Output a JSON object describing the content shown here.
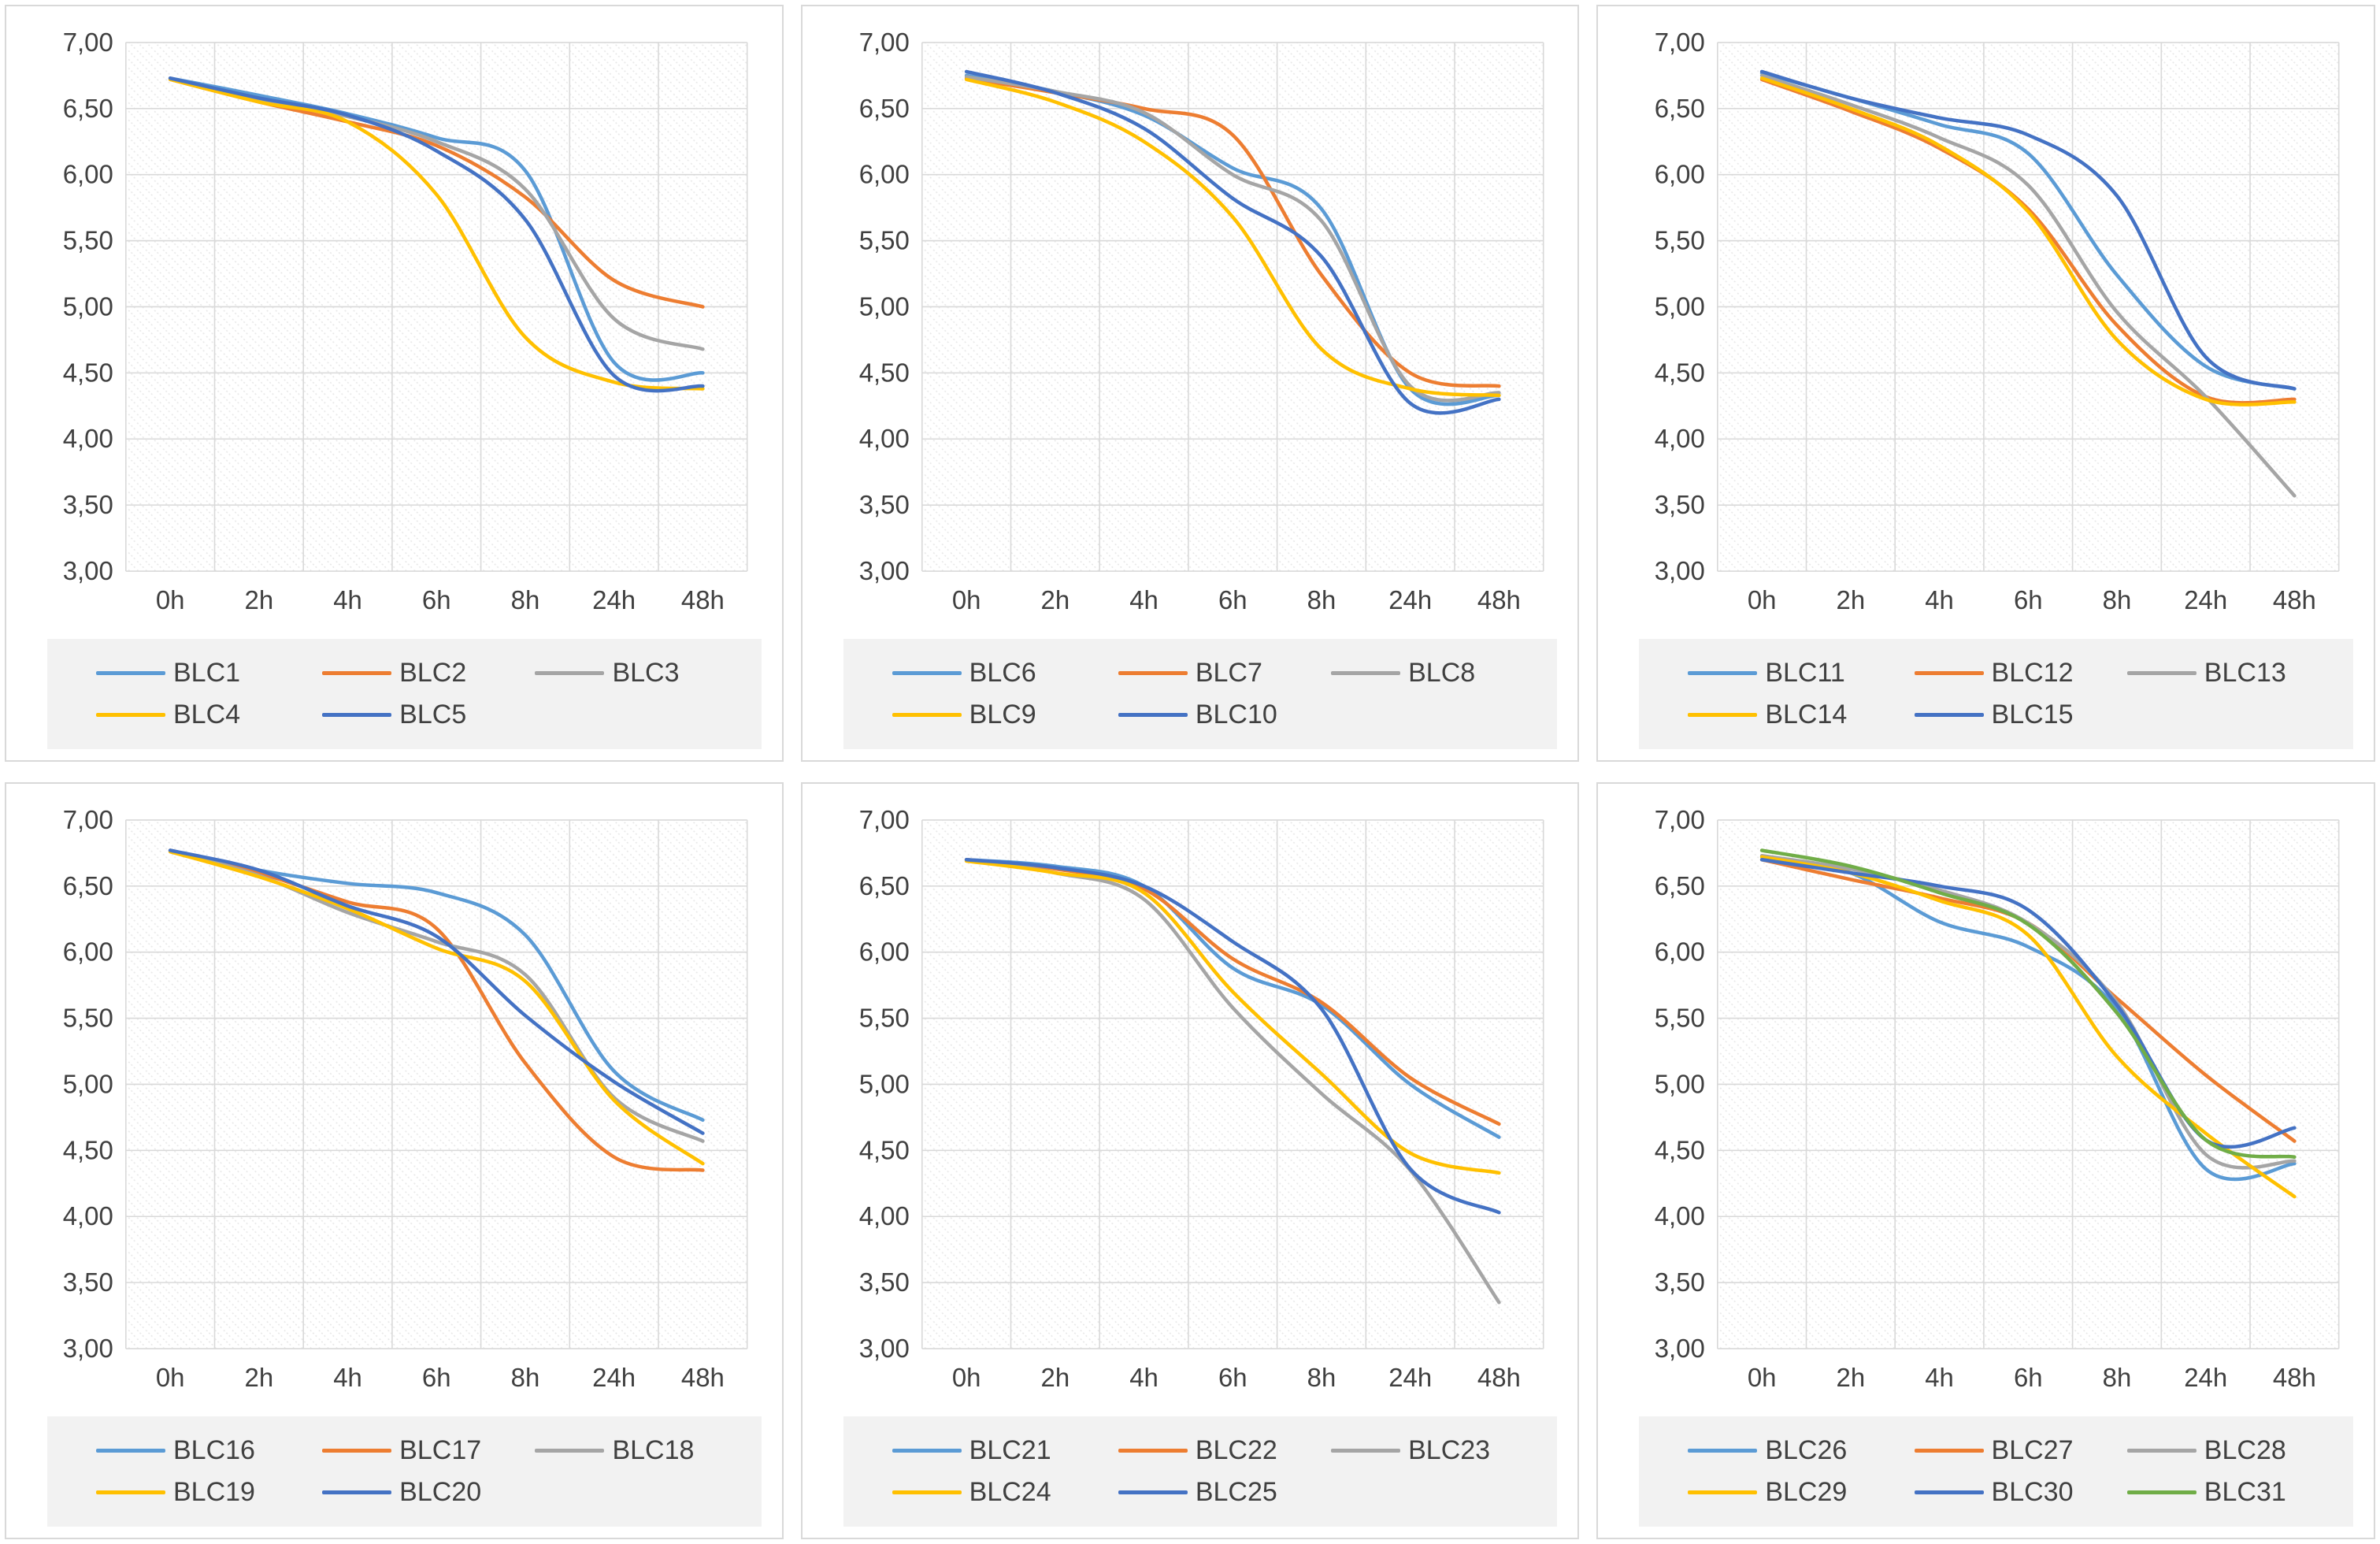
{
  "palette": {
    "light-blue": "#5B9BD5",
    "orange": "#ED7D31",
    "gray": "#A5A5A5",
    "gold": "#FFC000",
    "dark-blue": "#4472C4",
    "green": "#70AD47"
  },
  "colors_misc": {
    "grid_line": "#D9D9D9",
    "panel_border": "#D9D9D9",
    "axis_text": "#404040",
    "legend_bg": "#F2F2F2",
    "hatch": "#E7E7E7"
  },
  "axis": {
    "x_labels": [
      "0h",
      "2h",
      "4h",
      "6h",
      "8h",
      "24h",
      "48h"
    ],
    "y_tick_labels": [
      "7,00",
      "6,50",
      "6,00",
      "5,50",
      "5,00",
      "4,50",
      "4,00",
      "3,50",
      "3,00"
    ],
    "ylim": [
      3,
      7
    ],
    "grid": "on",
    "legend_position": "bottom"
  },
  "chart_data": [
    {
      "id": "chart-1",
      "type": "line",
      "x": [
        "0h",
        "2h",
        "4h",
        "6h",
        "8h",
        "24h",
        "48h"
      ],
      "ylim": [
        3,
        7
      ],
      "series": [
        {
          "name": "BLC1",
          "color": "light-blue",
          "values": [
            6.73,
            6.6,
            6.46,
            6.28,
            6.03,
            4.58,
            4.5
          ]
        },
        {
          "name": "BLC2",
          "color": "orange",
          "values": [
            6.72,
            6.55,
            6.4,
            6.22,
            5.83,
            5.2,
            5.0
          ]
        },
        {
          "name": "BLC3",
          "color": "gray",
          "values": [
            6.73,
            6.57,
            6.44,
            6.25,
            5.89,
            4.91,
            4.68
          ]
        },
        {
          "name": "BLC4",
          "color": "gold",
          "values": [
            6.72,
            6.55,
            6.4,
            5.85,
            4.77,
            4.43,
            4.38
          ]
        },
        {
          "name": "BLC5",
          "color": "dark-blue",
          "values": [
            6.73,
            6.58,
            6.45,
            6.18,
            5.66,
            4.48,
            4.4
          ]
        }
      ]
    },
    {
      "id": "chart-2",
      "type": "line",
      "x": [
        "0h",
        "2h",
        "4h",
        "6h",
        "8h",
        "24h",
        "48h"
      ],
      "ylim": [
        3,
        7
      ],
      "series": [
        {
          "name": "BLC6",
          "color": "light-blue",
          "values": [
            6.75,
            6.63,
            6.45,
            6.05,
            5.74,
            4.38,
            4.33
          ]
        },
        {
          "name": "BLC7",
          "color": "orange",
          "values": [
            6.73,
            6.62,
            6.5,
            6.3,
            5.24,
            4.5,
            4.4
          ]
        },
        {
          "name": "BLC8",
          "color": "gray",
          "values": [
            6.74,
            6.63,
            6.47,
            6.0,
            5.65,
            4.4,
            4.35
          ]
        },
        {
          "name": "BLC9",
          "color": "gold",
          "values": [
            6.72,
            6.55,
            6.25,
            5.68,
            4.68,
            4.38,
            4.33
          ]
        },
        {
          "name": "BLC10",
          "color": "dark-blue",
          "values": [
            6.78,
            6.62,
            6.35,
            5.82,
            5.38,
            4.27,
            4.3
          ]
        }
      ]
    },
    {
      "id": "chart-3",
      "type": "line",
      "x": [
        "0h",
        "2h",
        "4h",
        "6h",
        "8h",
        "24h",
        "48h"
      ],
      "ylim": [
        3,
        7
      ],
      "series": [
        {
          "name": "BLC11",
          "color": "light-blue",
          "values": [
            6.77,
            6.58,
            6.38,
            6.16,
            5.24,
            4.55,
            4.38
          ]
        },
        {
          "name": "BLC12",
          "color": "orange",
          "values": [
            6.72,
            6.48,
            6.2,
            5.74,
            4.86,
            4.32,
            4.3
          ]
        },
        {
          "name": "BLC13",
          "color": "gray",
          "values": [
            6.75,
            6.53,
            6.28,
            5.92,
            4.96,
            4.32,
            3.57
          ]
        },
        {
          "name": "BLC14",
          "color": "gold",
          "values": [
            6.73,
            6.5,
            6.22,
            5.72,
            4.75,
            4.3,
            4.28
          ]
        },
        {
          "name": "BLC15",
          "color": "dark-blue",
          "values": [
            6.78,
            6.58,
            6.43,
            6.3,
            5.84,
            4.62,
            4.38
          ]
        }
      ]
    },
    {
      "id": "chart-4",
      "type": "line",
      "x": [
        "0h",
        "2h",
        "4h",
        "6h",
        "8h",
        "24h",
        "48h"
      ],
      "ylim": [
        3,
        7
      ],
      "series": [
        {
          "name": "BLC16",
          "color": "light-blue",
          "values": [
            6.77,
            6.62,
            6.52,
            6.45,
            6.13,
            5.1,
            4.73
          ]
        },
        {
          "name": "BLC17",
          "color": "orange",
          "values": [
            6.77,
            6.6,
            6.38,
            6.18,
            5.16,
            4.45,
            4.35
          ]
        },
        {
          "name": "BLC18",
          "color": "gray",
          "values": [
            6.77,
            6.58,
            6.3,
            6.08,
            5.83,
            4.9,
            4.57
          ]
        },
        {
          "name": "BLC19",
          "color": "gold",
          "values": [
            6.76,
            6.57,
            6.33,
            6.03,
            5.78,
            4.88,
            4.4
          ]
        },
        {
          "name": "BLC20",
          "color": "dark-blue",
          "values": [
            6.77,
            6.62,
            6.35,
            6.12,
            5.52,
            5.02,
            4.63
          ]
        }
      ]
    },
    {
      "id": "chart-5",
      "type": "line",
      "x": [
        "0h",
        "2h",
        "4h",
        "6h",
        "8h",
        "24h",
        "48h"
      ],
      "ylim": [
        3,
        7
      ],
      "series": [
        {
          "name": "BLC21",
          "color": "light-blue",
          "values": [
            6.7,
            6.65,
            6.5,
            5.88,
            5.6,
            5.0,
            4.6
          ]
        },
        {
          "name": "BLC22",
          "color": "orange",
          "values": [
            6.7,
            6.63,
            6.48,
            5.95,
            5.62,
            5.05,
            4.7
          ]
        },
        {
          "name": "BLC23",
          "color": "gray",
          "values": [
            6.7,
            6.6,
            6.4,
            5.58,
            4.93,
            4.35,
            3.35
          ]
        },
        {
          "name": "BLC24",
          "color": "gold",
          "values": [
            6.69,
            6.6,
            6.45,
            5.7,
            5.08,
            4.48,
            4.33
          ]
        },
        {
          "name": "BLC25",
          "color": "dark-blue",
          "values": [
            6.7,
            6.64,
            6.5,
            6.08,
            5.57,
            4.36,
            4.03
          ]
        }
      ]
    },
    {
      "id": "chart-6",
      "type": "line",
      "x": [
        "0h",
        "2h",
        "4h",
        "6h",
        "8h",
        "24h",
        "48h"
      ],
      "ylim": [
        3,
        7
      ],
      "series": [
        {
          "name": "BLC26",
          "color": "light-blue",
          "values": [
            6.72,
            6.6,
            6.23,
            6.04,
            5.57,
            4.36,
            4.4
          ]
        },
        {
          "name": "BLC27",
          "color": "orange",
          "values": [
            6.7,
            6.55,
            6.41,
            6.22,
            5.65,
            5.07,
            4.57
          ]
        },
        {
          "name": "BLC28",
          "color": "gray",
          "values": [
            6.73,
            6.63,
            6.47,
            6.22,
            5.62,
            4.47,
            4.42
          ]
        },
        {
          "name": "BLC29",
          "color": "gold",
          "values": [
            6.72,
            6.6,
            6.39,
            6.13,
            5.21,
            4.63,
            4.15
          ]
        },
        {
          "name": "BLC30",
          "color": "dark-blue",
          "values": [
            6.7,
            6.6,
            6.5,
            6.32,
            5.6,
            4.58,
            4.67
          ]
        },
        {
          "name": "BLC31",
          "color": "green",
          "values": [
            6.77,
            6.65,
            6.45,
            6.21,
            5.54,
            4.58,
            4.45
          ]
        }
      ]
    }
  ]
}
